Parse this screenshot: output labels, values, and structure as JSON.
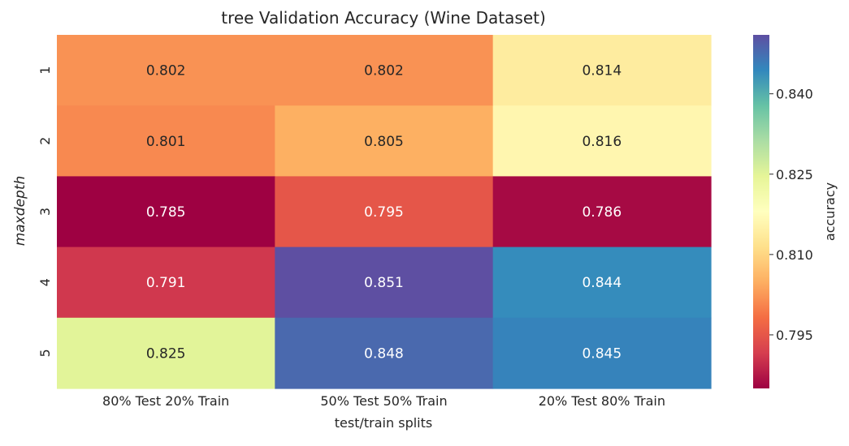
{
  "chart_data": {
    "type": "heatmap",
    "title": "tree Validation Accuracy (Wine Dataset)",
    "xlabel": "test/train splits",
    "ylabel": "maxdepth",
    "x_categories": [
      "80% Test 20% Train",
      "50% Test 50% Train",
      "20% Test 80% Train"
    ],
    "y_categories": [
      "1",
      "2",
      "3",
      "4",
      "5"
    ],
    "values": [
      [
        0.802,
        0.802,
        0.814
      ],
      [
        0.801,
        0.805,
        0.816
      ],
      [
        0.785,
        0.795,
        0.786
      ],
      [
        0.791,
        0.851,
        0.844
      ],
      [
        0.825,
        0.848,
        0.845
      ]
    ],
    "value_labels": [
      [
        "0.802",
        "0.802",
        "0.814"
      ],
      [
        "0.801",
        "0.805",
        "0.816"
      ],
      [
        "0.785",
        "0.795",
        "0.786"
      ],
      [
        "0.791",
        "0.851",
        "0.844"
      ],
      [
        "0.825",
        "0.848",
        "0.845"
      ]
    ],
    "colormap": "Spectral",
    "colorbar": {
      "label": "accuracy",
      "range": [
        0.785,
        0.851
      ],
      "ticks": [
        0.795,
        0.81,
        0.825,
        0.84
      ],
      "tick_labels": [
        "0.795",
        "0.810",
        "0.825",
        "0.840"
      ]
    },
    "grid": false,
    "legend": "none"
  }
}
